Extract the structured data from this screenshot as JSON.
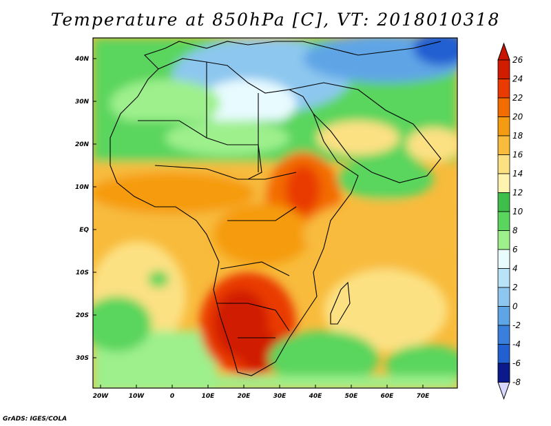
{
  "title": "Temperature at 850hPa [C], VT: 2018010318",
  "credit": "GrADS: IGES/COLA",
  "map": {
    "lon_ticks": [
      "20W",
      "10W",
      "0",
      "10E",
      "20E",
      "30E",
      "40E",
      "50E",
      "60E",
      "70E"
    ],
    "lat_ticks": [
      "40N",
      "30N",
      "20N",
      "10N",
      "EQ",
      "10S",
      "20S",
      "30S"
    ]
  },
  "colorbar": {
    "levels": [
      "26",
      "24",
      "22",
      "20",
      "18",
      "16",
      "14",
      "12",
      "10",
      "8",
      "6",
      "4",
      "2",
      "0",
      "-2",
      "-4",
      "-6",
      "-8"
    ],
    "colors": [
      "#d01d00",
      "#e93a00",
      "#f36c00",
      "#f59b11",
      "#f8bb3c",
      "#fce183",
      "#fff3b0",
      "#3fbe4b",
      "#5ad55d",
      "#9ef08d",
      "#e8fbff",
      "#b9e4f7",
      "#8dc7ef",
      "#5ea5e6",
      "#3a7fdc",
      "#225fd1",
      "#1541b6",
      "#0b198a"
    ]
  }
}
